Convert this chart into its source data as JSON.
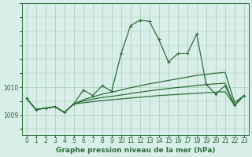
{
  "background_color": "#d8eee8",
  "grid_color": "#aaccbb",
  "line_color": "#2d6e3a",
  "x_labels": [
    "0",
    "1",
    "2",
    "3",
    "4",
    "5",
    "6",
    "7",
    "8",
    "9",
    "10",
    "11",
    "12",
    "13",
    "14",
    "15",
    "16",
    "17",
    "18",
    "19",
    "20",
    "21",
    "22",
    "23"
  ],
  "main_line": [
    1009.6,
    1009.2,
    1009.25,
    1009.3,
    1009.1,
    1009.4,
    1009.9,
    1009.7,
    1010.05,
    1009.85,
    1011.2,
    1012.2,
    1012.4,
    1012.35,
    1011.7,
    1010.9,
    1011.2,
    1011.2,
    1011.9,
    1010.1,
    1009.75,
    1010.05,
    1009.35,
    1009.7
  ],
  "line2": [
    1009.6,
    1009.2,
    1009.25,
    1009.3,
    1009.1,
    1009.4,
    1009.55,
    1009.65,
    1009.75,
    1009.82,
    1009.9,
    1009.98,
    1010.05,
    1010.12,
    1010.18,
    1010.24,
    1010.3,
    1010.36,
    1010.42,
    1010.46,
    1010.5,
    1010.53,
    1009.45,
    1009.7
  ],
  "line3": [
    1009.6,
    1009.2,
    1009.25,
    1009.3,
    1009.1,
    1009.4,
    1009.5,
    1009.57,
    1009.63,
    1009.67,
    1009.72,
    1009.77,
    1009.82,
    1009.87,
    1009.91,
    1009.95,
    1009.99,
    1010.02,
    1010.06,
    1010.09,
    1010.12,
    1010.14,
    1009.35,
    1009.7
  ],
  "line4": [
    1009.6,
    1009.2,
    1009.25,
    1009.3,
    1009.1,
    1009.4,
    1009.44,
    1009.48,
    1009.52,
    1009.55,
    1009.58,
    1009.61,
    1009.64,
    1009.67,
    1009.7,
    1009.72,
    1009.74,
    1009.76,
    1009.78,
    1009.8,
    1009.82,
    1009.84,
    1009.35,
    1009.7
  ],
  "yticks": [
    1009,
    1010
  ],
  "ylim": [
    1008.3,
    1013.0
  ],
  "xlim": [
    -0.5,
    23.5
  ],
  "xlabel": "Graphe pression niveau de la mer (hPa)",
  "xlabel_fontsize": 6.5,
  "tick_fontsize": 5.5,
  "line_width": 0.9
}
